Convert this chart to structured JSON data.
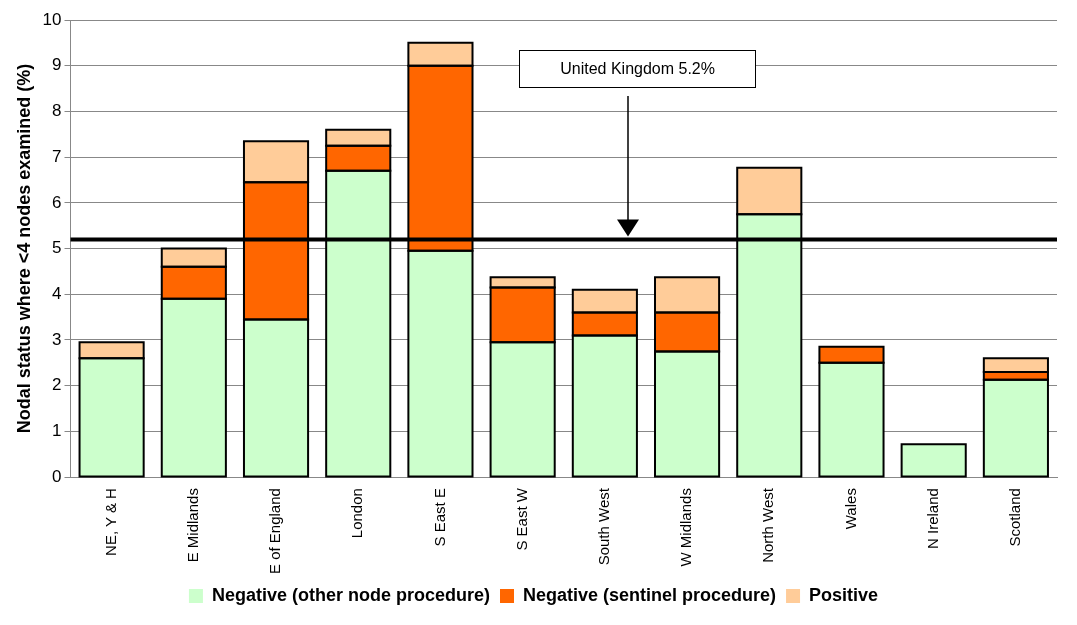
{
  "chart_data": {
    "type": "bar",
    "stacked": true,
    "ylabel": "Nodal status where <4 nodes examined (%)",
    "categories": [
      "NE, Y & H",
      "E Midlands",
      "E of England",
      "London",
      "S East E",
      "S East W",
      "South West",
      "W Midlands",
      "North West",
      "Wales",
      "N Ireland",
      "Scotland"
    ],
    "series": [
      {
        "name": "Negative (other node procedure)",
        "color": "#ccffcc",
        "values": [
          2.6,
          3.9,
          3.45,
          6.7,
          4.95,
          2.95,
          3.1,
          2.75,
          5.75,
          2.5,
          0.72,
          2.13
        ]
      },
      {
        "name": "Negative (sentinel procedure)",
        "color": "#ff6600",
        "values": [
          0,
          0.7,
          3.0,
          0.55,
          4.05,
          1.2,
          0.5,
          0.85,
          0,
          0.35,
          0,
          0.17
        ]
      },
      {
        "name": "Positive",
        "color": "#ffcc99",
        "values": [
          0.35,
          0.4,
          0.9,
          0.35,
          0.5,
          0.22,
          0.5,
          0.77,
          1.02,
          0,
          0,
          0.3
        ]
      }
    ],
    "ylim": [
      0,
      10
    ],
    "yticks": [
      0,
      1,
      2,
      3,
      4,
      5,
      6,
      7,
      8,
      9,
      10
    ],
    "grid": "y",
    "legend": "bottom",
    "ref_lines": [
      {
        "axis": "y",
        "value": 5.2,
        "color": "#000000"
      }
    ],
    "annotations": [
      "United Kingdom 5.2%"
    ]
  }
}
